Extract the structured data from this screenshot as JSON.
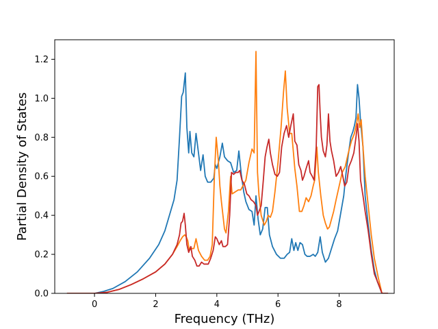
{
  "chart_data": {
    "type": "line",
    "title": "",
    "xlabel": "Frequency (THz)",
    "ylabel": "Partial Density of States",
    "xlim": [
      -1.3,
      9.8
    ],
    "ylim": [
      0.0,
      1.3
    ],
    "xticks": [
      0,
      2,
      4,
      6,
      8
    ],
    "yticks": [
      0.0,
      0.2,
      0.4,
      0.6,
      0.8,
      1.0,
      1.2
    ],
    "xtick_labels": [
      "0",
      "2",
      "4",
      "6",
      "8"
    ],
    "ytick_labels": [
      "0.0",
      "0.2",
      "0.4",
      "0.6",
      "0.8",
      "1.0",
      "1.2"
    ],
    "grid": false,
    "legend": false,
    "series": [
      {
        "color": "#1f77b4",
        "points": [
          [
            -0.9,
            0.0
          ],
          [
            0.0,
            0.0
          ],
          [
            0.3,
            0.01
          ],
          [
            0.6,
            0.025
          ],
          [
            1.0,
            0.06
          ],
          [
            1.4,
            0.11
          ],
          [
            1.8,
            0.18
          ],
          [
            2.1,
            0.25
          ],
          [
            2.3,
            0.32
          ],
          [
            2.45,
            0.4
          ],
          [
            2.6,
            0.48
          ],
          [
            2.7,
            0.58
          ],
          [
            2.78,
            0.8
          ],
          [
            2.85,
            1.01
          ],
          [
            2.9,
            1.03
          ],
          [
            2.97,
            1.13
          ],
          [
            3.02,
            0.85
          ],
          [
            3.08,
            0.72
          ],
          [
            3.12,
            0.83
          ],
          [
            3.18,
            0.72
          ],
          [
            3.25,
            0.7
          ],
          [
            3.32,
            0.82
          ],
          [
            3.4,
            0.72
          ],
          [
            3.47,
            0.63
          ],
          [
            3.55,
            0.71
          ],
          [
            3.62,
            0.6
          ],
          [
            3.7,
            0.57
          ],
          [
            3.8,
            0.57
          ],
          [
            3.9,
            0.59
          ],
          [
            3.95,
            0.66
          ],
          [
            4.0,
            0.64
          ],
          [
            4.1,
            0.7
          ],
          [
            4.18,
            0.77
          ],
          [
            4.25,
            0.7
          ],
          [
            4.35,
            0.68
          ],
          [
            4.45,
            0.67
          ],
          [
            4.55,
            0.62
          ],
          [
            4.65,
            0.63
          ],
          [
            4.72,
            0.73
          ],
          [
            4.8,
            0.61
          ],
          [
            4.88,
            0.52
          ],
          [
            4.95,
            0.47
          ],
          [
            5.05,
            0.43
          ],
          [
            5.15,
            0.42
          ],
          [
            5.22,
            0.35
          ],
          [
            5.28,
            0.5
          ],
          [
            5.35,
            0.38
          ],
          [
            5.42,
            0.3
          ],
          [
            5.5,
            0.33
          ],
          [
            5.58,
            0.44
          ],
          [
            5.65,
            0.44
          ],
          [
            5.72,
            0.3
          ],
          [
            5.82,
            0.24
          ],
          [
            5.95,
            0.2
          ],
          [
            6.08,
            0.18
          ],
          [
            6.2,
            0.18
          ],
          [
            6.3,
            0.2
          ],
          [
            6.38,
            0.21
          ],
          [
            6.45,
            0.28
          ],
          [
            6.52,
            0.22
          ],
          [
            6.58,
            0.26
          ],
          [
            6.65,
            0.22
          ],
          [
            6.72,
            0.26
          ],
          [
            6.8,
            0.25
          ],
          [
            6.88,
            0.2
          ],
          [
            6.95,
            0.19
          ],
          [
            7.05,
            0.19
          ],
          [
            7.15,
            0.2
          ],
          [
            7.22,
            0.19
          ],
          [
            7.3,
            0.21
          ],
          [
            7.38,
            0.29
          ],
          [
            7.45,
            0.21
          ],
          [
            7.55,
            0.16
          ],
          [
            7.65,
            0.18
          ],
          [
            7.75,
            0.23
          ],
          [
            7.85,
            0.28
          ],
          [
            7.95,
            0.32
          ],
          [
            8.05,
            0.41
          ],
          [
            8.15,
            0.5
          ],
          [
            8.22,
            0.61
          ],
          [
            8.3,
            0.71
          ],
          [
            8.38,
            0.8
          ],
          [
            8.45,
            0.83
          ],
          [
            8.5,
            0.86
          ],
          [
            8.55,
            0.9
          ],
          [
            8.6,
            1.07
          ],
          [
            8.65,
            1.0
          ],
          [
            8.7,
            0.88
          ],
          [
            8.78,
            0.75
          ],
          [
            8.85,
            0.5
          ],
          [
            8.95,
            0.35
          ],
          [
            9.05,
            0.22
          ],
          [
            9.15,
            0.12
          ],
          [
            9.25,
            0.06
          ],
          [
            9.4,
            0.0
          ],
          [
            9.6,
            0.0
          ]
        ]
      },
      {
        "color": "#ff7f0e",
        "points": [
          [
            -0.9,
            0.0
          ],
          [
            0.0,
            0.0
          ],
          [
            0.4,
            0.005
          ],
          [
            0.8,
            0.02
          ],
          [
            1.2,
            0.045
          ],
          [
            1.6,
            0.075
          ],
          [
            2.0,
            0.11
          ],
          [
            2.3,
            0.15
          ],
          [
            2.55,
            0.2
          ],
          [
            2.7,
            0.24
          ],
          [
            2.8,
            0.27
          ],
          [
            2.88,
            0.29
          ],
          [
            2.95,
            0.3
          ],
          [
            3.0,
            0.29
          ],
          [
            3.05,
            0.27
          ],
          [
            3.1,
            0.22
          ],
          [
            3.18,
            0.23
          ],
          [
            3.25,
            0.23
          ],
          [
            3.32,
            0.28
          ],
          [
            3.4,
            0.22
          ],
          [
            3.5,
            0.19
          ],
          [
            3.6,
            0.17
          ],
          [
            3.7,
            0.17
          ],
          [
            3.78,
            0.19
          ],
          [
            3.85,
            0.25
          ],
          [
            3.92,
            0.6
          ],
          [
            3.98,
            0.8
          ],
          [
            4.05,
            0.68
          ],
          [
            4.1,
            0.55
          ],
          [
            4.15,
            0.47
          ],
          [
            4.2,
            0.4
          ],
          [
            4.25,
            0.33
          ],
          [
            4.3,
            0.31
          ],
          [
            4.38,
            0.42
          ],
          [
            4.45,
            0.6
          ],
          [
            4.5,
            0.51
          ],
          [
            4.6,
            0.52
          ],
          [
            4.7,
            0.53
          ],
          [
            4.78,
            0.53
          ],
          [
            4.85,
            0.55
          ],
          [
            4.95,
            0.58
          ],
          [
            5.05,
            0.67
          ],
          [
            5.15,
            0.74
          ],
          [
            5.22,
            0.72
          ],
          [
            5.28,
            1.24
          ],
          [
            5.33,
            0.62
          ],
          [
            5.38,
            0.5
          ],
          [
            5.45,
            0.4
          ],
          [
            5.55,
            0.35
          ],
          [
            5.62,
            0.37
          ],
          [
            5.68,
            0.4
          ],
          [
            5.75,
            0.39
          ],
          [
            5.82,
            0.42
          ],
          [
            5.9,
            0.52
          ],
          [
            6.0,
            0.67
          ],
          [
            6.1,
            0.85
          ],
          [
            6.18,
            1.03
          ],
          [
            6.24,
            1.14
          ],
          [
            6.3,
            0.95
          ],
          [
            6.38,
            0.82
          ],
          [
            6.45,
            0.82
          ],
          [
            6.55,
            0.64
          ],
          [
            6.62,
            0.55
          ],
          [
            6.7,
            0.42
          ],
          [
            6.78,
            0.42
          ],
          [
            6.85,
            0.45
          ],
          [
            6.92,
            0.49
          ],
          [
            7.0,
            0.47
          ],
          [
            7.08,
            0.5
          ],
          [
            7.15,
            0.55
          ],
          [
            7.2,
            0.58
          ],
          [
            7.27,
            0.75
          ],
          [
            7.32,
            0.62
          ],
          [
            7.4,
            0.5
          ],
          [
            7.48,
            0.4
          ],
          [
            7.55,
            0.36
          ],
          [
            7.62,
            0.33
          ],
          [
            7.68,
            0.34
          ],
          [
            7.75,
            0.38
          ],
          [
            7.82,
            0.42
          ],
          [
            7.9,
            0.48
          ],
          [
            8.0,
            0.55
          ],
          [
            8.1,
            0.62
          ],
          [
            8.2,
            0.65
          ],
          [
            8.3,
            0.72
          ],
          [
            8.4,
            0.78
          ],
          [
            8.5,
            0.82
          ],
          [
            8.58,
            0.88
          ],
          [
            8.62,
            0.92
          ],
          [
            8.67,
            0.85
          ],
          [
            8.72,
            0.89
          ],
          [
            8.78,
            0.75
          ],
          [
            8.85,
            0.6
          ],
          [
            8.95,
            0.45
          ],
          [
            9.05,
            0.3
          ],
          [
            9.15,
            0.18
          ],
          [
            9.28,
            0.08
          ],
          [
            9.4,
            0.0
          ],
          [
            9.6,
            0.0
          ]
        ]
      },
      {
        "color": "#c62828",
        "points": [
          [
            -0.9,
            0.0
          ],
          [
            0.0,
            0.0
          ],
          [
            0.4,
            0.005
          ],
          [
            0.8,
            0.02
          ],
          [
            1.2,
            0.045
          ],
          [
            1.6,
            0.075
          ],
          [
            2.0,
            0.11
          ],
          [
            2.3,
            0.15
          ],
          [
            2.55,
            0.2
          ],
          [
            2.7,
            0.25
          ],
          [
            2.78,
            0.3
          ],
          [
            2.83,
            0.36
          ],
          [
            2.88,
            0.37
          ],
          [
            2.93,
            0.41
          ],
          [
            2.97,
            0.35
          ],
          [
            3.02,
            0.25
          ],
          [
            3.08,
            0.21
          ],
          [
            3.15,
            0.24
          ],
          [
            3.2,
            0.19
          ],
          [
            3.28,
            0.17
          ],
          [
            3.35,
            0.14
          ],
          [
            3.42,
            0.14
          ],
          [
            3.5,
            0.16
          ],
          [
            3.58,
            0.15
          ],
          [
            3.65,
            0.15
          ],
          [
            3.72,
            0.15
          ],
          [
            3.8,
            0.18
          ],
          [
            3.88,
            0.22
          ],
          [
            3.95,
            0.29
          ],
          [
            4.0,
            0.28
          ],
          [
            4.08,
            0.25
          ],
          [
            4.15,
            0.27
          ],
          [
            4.2,
            0.24
          ],
          [
            4.28,
            0.24
          ],
          [
            4.35,
            0.25
          ],
          [
            4.42,
            0.4
          ],
          [
            4.48,
            0.62
          ],
          [
            4.55,
            0.61
          ],
          [
            4.62,
            0.62
          ],
          [
            4.7,
            0.62
          ],
          [
            4.75,
            0.63
          ],
          [
            4.82,
            0.58
          ],
          [
            4.9,
            0.56
          ],
          [
            4.98,
            0.51
          ],
          [
            5.05,
            0.5
          ],
          [
            5.12,
            0.48
          ],
          [
            5.2,
            0.47
          ],
          [
            5.28,
            0.45
          ],
          [
            5.33,
            0.4
          ],
          [
            5.38,
            0.42
          ],
          [
            5.45,
            0.45
          ],
          [
            5.52,
            0.58
          ],
          [
            5.58,
            0.7
          ],
          [
            5.64,
            0.75
          ],
          [
            5.7,
            0.79
          ],
          [
            5.75,
            0.72
          ],
          [
            5.82,
            0.66
          ],
          [
            5.9,
            0.61
          ],
          [
            5.98,
            0.6
          ],
          [
            6.05,
            0.62
          ],
          [
            6.12,
            0.75
          ],
          [
            6.2,
            0.82
          ],
          [
            6.28,
            0.86
          ],
          [
            6.35,
            0.8
          ],
          [
            6.42,
            0.86
          ],
          [
            6.5,
            0.92
          ],
          [
            6.55,
            0.78
          ],
          [
            6.62,
            0.76
          ],
          [
            6.68,
            0.66
          ],
          [
            6.75,
            0.63
          ],
          [
            6.8,
            0.58
          ],
          [
            6.85,
            0.6
          ],
          [
            6.92,
            0.64
          ],
          [
            7.0,
            0.68
          ],
          [
            7.05,
            0.62
          ],
          [
            7.12,
            0.6
          ],
          [
            7.18,
            0.58
          ],
          [
            7.25,
            0.75
          ],
          [
            7.3,
            1.06
          ],
          [
            7.34,
            1.07
          ],
          [
            7.38,
            0.92
          ],
          [
            7.42,
            0.8
          ],
          [
            7.48,
            0.73
          ],
          [
            7.55,
            0.7
          ],
          [
            7.6,
            0.76
          ],
          [
            7.65,
            0.92
          ],
          [
            7.7,
            0.78
          ],
          [
            7.75,
            0.73
          ],
          [
            7.82,
            0.68
          ],
          [
            7.9,
            0.6
          ],
          [
            7.98,
            0.62
          ],
          [
            8.05,
            0.65
          ],
          [
            8.12,
            0.6
          ],
          [
            8.18,
            0.55
          ],
          [
            8.25,
            0.57
          ],
          [
            8.32,
            0.65
          ],
          [
            8.4,
            0.68
          ],
          [
            8.48,
            0.72
          ],
          [
            8.55,
            0.8
          ],
          [
            8.6,
            0.87
          ],
          [
            8.65,
            0.78
          ],
          [
            8.7,
            0.58
          ],
          [
            8.78,
            0.5
          ],
          [
            8.85,
            0.42
          ],
          [
            8.95,
            0.32
          ],
          [
            9.05,
            0.2
          ],
          [
            9.15,
            0.1
          ],
          [
            9.28,
            0.05
          ],
          [
            9.4,
            0.0
          ],
          [
            9.6,
            0.0
          ]
        ]
      }
    ]
  }
}
